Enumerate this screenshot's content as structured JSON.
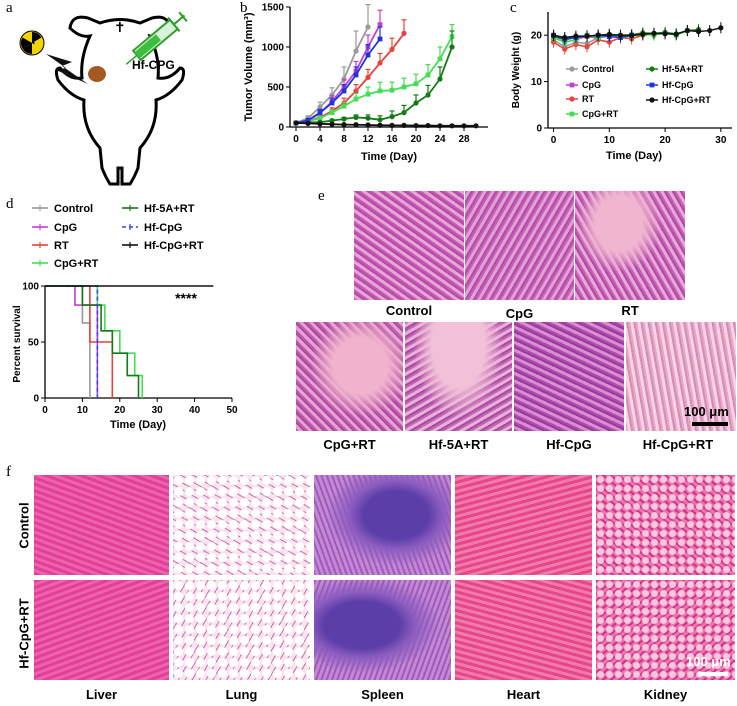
{
  "panel_labels": {
    "a": "a",
    "b": "b",
    "c": "c",
    "d": "d",
    "e": "e",
    "f": "f"
  },
  "panel_a": {
    "drug_label": "Hf-CPG"
  },
  "chart_data": [
    {
      "id": "b",
      "type": "line",
      "title": "",
      "xlabel": "Time (Day)",
      "ylabel": "Tumor Volume (mm³)",
      "xlim": [
        -1,
        32
      ],
      "ylim": [
        0,
        1500
      ],
      "xticks": [
        "0",
        "4",
        "8",
        "12",
        "16",
        "20",
        "24",
        "28"
      ],
      "yticks": [
        "0",
        "500",
        "1000",
        "1500"
      ],
      "series": [
        {
          "name": "Control",
          "color": "#9a9a9a",
          "x": [
            0,
            2,
            4,
            6,
            8,
            10,
            12
          ],
          "y": [
            50,
            110,
            250,
            400,
            600,
            950,
            1250
          ],
          "err": [
            10,
            30,
            60,
            90,
            150,
            250,
            280
          ]
        },
        {
          "name": "CpG",
          "color": "#c33fd0",
          "x": [
            0,
            2,
            4,
            6,
            8,
            10,
            12,
            14
          ],
          "y": [
            50,
            80,
            170,
            320,
            500,
            700,
            1000,
            1280
          ],
          "err": [
            10,
            20,
            40,
            70,
            90,
            120,
            150,
            180
          ]
        },
        {
          "name": "RT",
          "color": "#e8423c",
          "x": [
            0,
            2,
            4,
            6,
            8,
            10,
            12,
            14,
            16,
            18
          ],
          "y": [
            50,
            70,
            120,
            200,
            300,
            450,
            620,
            800,
            970,
            1170
          ],
          "err": [
            10,
            15,
            30,
            40,
            60,
            80,
            100,
            120,
            140,
            170
          ]
        },
        {
          "name": "CpG+RT",
          "color": "#44dd55",
          "x": [
            0,
            2,
            4,
            6,
            8,
            10,
            12,
            14,
            16,
            18,
            20,
            22,
            24,
            26
          ],
          "y": [
            50,
            70,
            110,
            180,
            260,
            350,
            410,
            450,
            460,
            500,
            540,
            650,
            850,
            1130
          ],
          "err": [
            10,
            15,
            25,
            35,
            50,
            70,
            90,
            110,
            100,
            110,
            120,
            130,
            150,
            150
          ]
        },
        {
          "name": "Hf-5A+RT",
          "color": "#157a15",
          "x": [
            0,
            4,
            6,
            8,
            10,
            12,
            14,
            16,
            18,
            20,
            22,
            24,
            26
          ],
          "y": [
            50,
            60,
            80,
            100,
            120,
            110,
            90,
            130,
            180,
            300,
            400,
            600,
            1000
          ],
          "err": [
            10,
            10,
            15,
            20,
            30,
            40,
            50,
            70,
            90,
            100,
            120,
            150,
            200
          ]
        },
        {
          "name": "Hf-CpG",
          "color": "#2233dd",
          "x": [
            0,
            2,
            4,
            6,
            8,
            10,
            12,
            14
          ],
          "y": [
            50,
            85,
            180,
            300,
            450,
            650,
            900,
            1100
          ],
          "err": [
            10,
            20,
            40,
            60,
            80,
            100,
            130,
            150
          ]
        },
        {
          "name": "Hf-CpG+RT",
          "color": "#111111",
          "x": [
            0,
            2,
            4,
            6,
            8,
            10,
            12,
            14,
            16,
            18,
            20,
            22,
            24,
            26,
            28,
            30
          ],
          "y": [
            50,
            45,
            40,
            35,
            30,
            28,
            25,
            22,
            20,
            20,
            18,
            18,
            15,
            15,
            15,
            15
          ],
          "err": [
            5,
            5,
            5,
            5,
            5,
            5,
            5,
            5,
            5,
            5,
            5,
            5,
            5,
            5,
            5,
            5
          ]
        }
      ]
    },
    {
      "id": "c",
      "type": "line",
      "xlabel": "Time (Day)",
      "ylabel": "Body Weight (g)",
      "xlim": [
        -1,
        32
      ],
      "ylim": [
        0,
        25
      ],
      "xticks": [
        "0",
        "10",
        "20",
        "30"
      ],
      "yticks": [
        "0",
        "10",
        "20"
      ],
      "legend": [
        "Control",
        "CpG",
        "RT",
        "CpG+RT",
        "Hf-5A+RT",
        "Hf-CpG",
        "Hf-CpG+RT"
      ],
      "series": [
        {
          "name": "Control",
          "color": "#9a9a9a",
          "x": [
            0,
            2,
            4,
            6,
            8,
            10,
            12
          ],
          "y": [
            19,
            17.5,
            18.5,
            18.2,
            19.5,
            19.8,
            20
          ]
        },
        {
          "name": "CpG",
          "color": "#c33fd0",
          "x": [
            0,
            2,
            4,
            6,
            8,
            10,
            12,
            14
          ],
          "y": [
            19.5,
            18.5,
            19,
            19.8,
            19.3,
            20,
            19.5,
            20
          ]
        },
        {
          "name": "RT",
          "color": "#e8423c",
          "x": [
            0,
            2,
            4,
            6,
            8,
            10,
            12,
            14,
            16,
            18
          ],
          "y": [
            18.5,
            17,
            18,
            17.5,
            19,
            18.5,
            19.5,
            19.2,
            20,
            20.2
          ]
        },
        {
          "name": "CpG+RT",
          "color": "#44dd55",
          "x": [
            0,
            2,
            4,
            6,
            8,
            10,
            12,
            14,
            16,
            18,
            20,
            22,
            24,
            26
          ],
          "y": [
            19.5,
            18.5,
            19,
            20,
            19.5,
            20,
            19.5,
            19.8,
            20.2,
            20,
            20.5,
            20,
            21,
            21
          ]
        },
        {
          "name": "Hf-5A+RT",
          "color": "#157a15",
          "x": [
            0,
            2,
            4,
            6,
            8,
            10,
            12,
            14,
            16,
            18,
            20,
            22,
            24,
            26
          ],
          "y": [
            19.8,
            19,
            19.5,
            19.8,
            20,
            20.2,
            20,
            20.1,
            20.5,
            20.4,
            20.6,
            20.3,
            21,
            21.2
          ]
        },
        {
          "name": "Hf-CpG",
          "color": "#2233dd",
          "x": [
            0,
            2,
            4,
            6,
            8,
            10,
            12,
            14
          ],
          "y": [
            20,
            19.2,
            19.5,
            19.8,
            20,
            19.7,
            19.5,
            20
          ]
        },
        {
          "name": "Hf-CpG+RT",
          "color": "#111111",
          "x": [
            0,
            2,
            4,
            6,
            8,
            10,
            12,
            14,
            16,
            18,
            20,
            22,
            24,
            26,
            28,
            30
          ],
          "y": [
            20,
            19.5,
            19.8,
            19.8,
            20,
            20.1,
            20,
            19.9,
            20.2,
            20.4,
            20.3,
            20.2,
            21,
            20.8,
            21,
            21.6
          ]
        }
      ]
    },
    {
      "id": "d",
      "type": "step",
      "xlabel": "Time (Day)",
      "ylabel": "Percent survival",
      "xlim": [
        0,
        50
      ],
      "ylim": [
        0,
        100
      ],
      "xticks": [
        "0",
        "10",
        "20",
        "30",
        "40",
        "50"
      ],
      "yticks": [
        "0",
        "50",
        "100"
      ],
      "significance": "****",
      "legend": [
        "Control",
        "CpG",
        "RT",
        "CpG+RT",
        "Hf-5A+RT",
        "Hf-CpG",
        "Hf-CpG+RT"
      ],
      "series": [
        {
          "name": "Control",
          "color": "#9a9a9a",
          "dash": false,
          "x": [
            0,
            10,
            12,
            12
          ],
          "y": [
            100,
            67,
            67,
            0
          ]
        },
        {
          "name": "CpG",
          "color": "#c33fd0",
          "dash": false,
          "x": [
            0,
            8,
            14,
            14
          ],
          "y": [
            100,
            83,
            83,
            0
          ]
        },
        {
          "name": "RT",
          "color": "#e8423c",
          "dash": false,
          "x": [
            0,
            12,
            18,
            18
          ],
          "y": [
            100,
            50,
            50,
            0
          ]
        },
        {
          "name": "CpG+RT",
          "color": "#44dd55",
          "dash": false,
          "x": [
            0,
            14,
            16,
            20,
            24,
            26
          ],
          "y": [
            100,
            83,
            60,
            40,
            20,
            0
          ]
        },
        {
          "name": "Hf-5A+RT",
          "color": "#157a15",
          "dash": false,
          "x": [
            0,
            10,
            15,
            18,
            22,
            25
          ],
          "y": [
            100,
            83,
            60,
            40,
            20,
            0
          ]
        },
        {
          "name": "Hf-CpG",
          "color": "#3344ee",
          "dash": true,
          "x": [
            0,
            14,
            14
          ],
          "y": [
            100,
            100,
            0
          ]
        },
        {
          "name": "Hf-CpG+RT",
          "color": "#111111",
          "dash": false,
          "x": [
            0,
            45
          ],
          "y": [
            100,
            100
          ]
        }
      ]
    }
  ],
  "panel_e": {
    "top_captions": [
      "Control",
      "CpG",
      "RT"
    ],
    "bottom_captions": [
      "CpG+RT",
      "Hf-5A+RT",
      "Hf-CpG",
      "Hf-CpG+RT"
    ],
    "scale_bar": "100 μm"
  },
  "panel_f": {
    "row_labels": [
      "Control",
      "Hf-CpG+RT"
    ],
    "organs": [
      "Liver",
      "Lung",
      "Spleen",
      "Heart",
      "Kidney"
    ],
    "scale_bar": "100 μm"
  }
}
